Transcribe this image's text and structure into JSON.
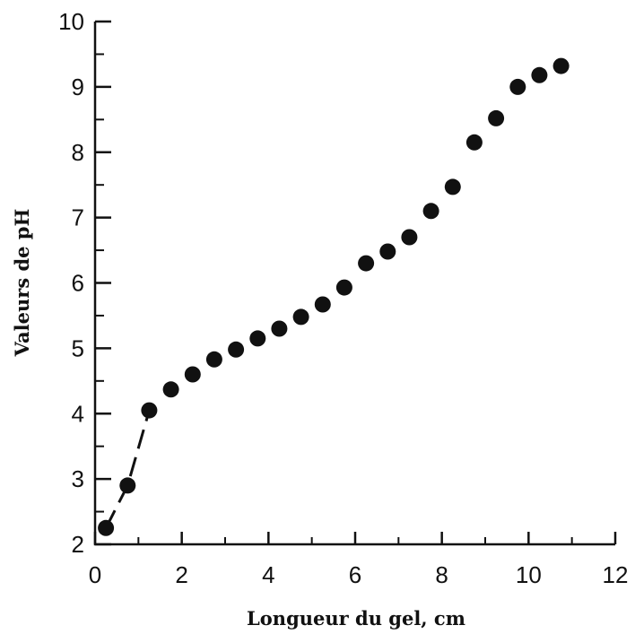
{
  "chart_data": {
    "type": "scatter",
    "title": "",
    "xlabel": "Longueur du gel, cm",
    "ylabel": "Valeurs de pH",
    "xlim": [
      0,
      12
    ],
    "ylim": [
      2,
      10
    ],
    "xticks": [
      "0",
      "2",
      "4",
      "6",
      "8",
      "10",
      "12"
    ],
    "yticks": [
      "2",
      "3",
      "4",
      "5",
      "6",
      "7",
      "8",
      "9",
      "10"
    ],
    "grid": false,
    "series": [
      {
        "marker": "filled-circle",
        "color": "#111111",
        "x": [
          0.25,
          0.75,
          1.25,
          1.75,
          2.25,
          2.75,
          3.25,
          3.75,
          4.25,
          4.75,
          5.25,
          5.75,
          6.25,
          6.75,
          7.25,
          7.75,
          8.25,
          8.75,
          9.25,
          9.75,
          10.25,
          10.75
        ],
        "y": [
          2.25,
          2.9,
          4.05,
          4.37,
          4.6,
          4.83,
          4.98,
          5.15,
          5.3,
          5.48,
          5.67,
          5.93,
          6.3,
          6.48,
          6.7,
          7.1,
          7.47,
          8.15,
          8.52,
          9.0,
          9.18,
          9.32
        ]
      }
    ],
    "dashed_segment": {
      "x": [
        0.25,
        0.75,
        1.25
      ],
      "y": [
        2.25,
        2.9,
        4.05
      ]
    }
  }
}
